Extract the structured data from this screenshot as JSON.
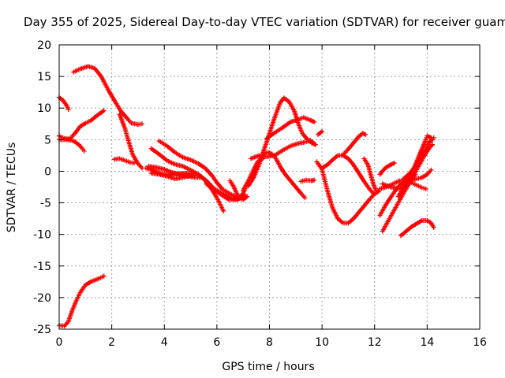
{
  "chart_data": {
    "type": "scatter",
    "title": "Day 355 of 2025, Sidereal Day-to-day VTEC variation (SDTVAR) for receiver guam",
    "xlabel": "GPS time / hours",
    "ylabel": "SDTVAR / TECUs",
    "xlim": [
      0,
      16
    ],
    "ylim": [
      -25,
      20
    ],
    "xticks": [
      "0",
      "2",
      "4",
      "6",
      "8",
      "10",
      "12",
      "14",
      "16"
    ],
    "yticks": [
      "-25",
      "-20",
      "-15",
      "-10",
      "-5",
      "0",
      "5",
      "10",
      "15",
      "20"
    ],
    "grid": true,
    "marker": "+",
    "color": "#ff0000",
    "series": [
      {
        "points": [
          [
            0.55,
            15.7
          ],
          [
            0.8,
            16.2
          ],
          [
            1.1,
            16.6
          ],
          [
            1.35,
            16.3
          ],
          [
            1.6,
            15.0
          ],
          [
            1.85,
            13.0
          ],
          [
            2.1,
            11.2
          ],
          [
            2.35,
            9.5
          ],
          [
            2.6,
            8.3
          ],
          [
            2.75,
            7.6
          ],
          [
            3.0,
            7.4
          ],
          [
            3.15,
            7.5
          ]
        ]
      },
      {
        "points": [
          [
            2.3,
            9.0
          ],
          [
            2.5,
            6.8
          ],
          [
            2.65,
            4.6
          ],
          [
            2.8,
            2.6
          ],
          [
            3.0,
            1.2
          ],
          [
            3.15,
            0.5
          ]
        ]
      },
      {
        "points": [
          [
            2.1,
            1.9
          ],
          [
            2.3,
            2.0
          ],
          [
            2.5,
            1.7
          ],
          [
            2.7,
            1.4
          ],
          [
            2.85,
            1.3
          ]
        ]
      },
      {
        "points": [
          [
            0.0,
            11.7
          ],
          [
            0.15,
            11.2
          ],
          [
            0.3,
            10.3
          ],
          [
            0.35,
            9.8
          ]
        ]
      },
      {
        "points": [
          [
            0.0,
            5.6
          ],
          [
            0.2,
            5.2
          ],
          [
            0.4,
            5.1
          ],
          [
            0.6,
            6.0
          ],
          [
            0.8,
            7.1
          ],
          [
            1.0,
            7.6
          ],
          [
            1.2,
            8.0
          ],
          [
            1.4,
            8.7
          ],
          [
            1.6,
            9.3
          ],
          [
            1.7,
            9.6
          ]
        ]
      },
      {
        "points": [
          [
            0.0,
            5.0
          ],
          [
            0.3,
            5.0
          ],
          [
            0.55,
            4.8
          ],
          [
            0.75,
            4.2
          ],
          [
            0.9,
            3.5
          ],
          [
            0.95,
            3.2
          ]
        ]
      },
      {
        "points": [
          [
            0.0,
            -24.4
          ],
          [
            0.2,
            -24.5
          ],
          [
            0.35,
            -23.8
          ],
          [
            0.5,
            -22.0
          ],
          [
            0.65,
            -20.5
          ],
          [
            0.8,
            -19.2
          ],
          [
            1.0,
            -18.0
          ],
          [
            1.2,
            -17.5
          ],
          [
            1.5,
            -17.0
          ],
          [
            1.7,
            -16.6
          ]
        ]
      },
      {
        "points": [
          [
            3.5,
            3.6
          ],
          [
            3.8,
            2.7
          ],
          [
            4.1,
            1.7
          ],
          [
            4.4,
            1.1
          ],
          [
            4.7,
            0.8
          ],
          [
            5.0,
            0.2
          ],
          [
            5.3,
            -0.5
          ],
          [
            5.5,
            -1.2
          ],
          [
            5.7,
            -2.2
          ],
          [
            5.9,
            -3.5
          ],
          [
            6.1,
            -5.0
          ],
          [
            6.25,
            -6.3
          ]
        ]
      },
      {
        "points": [
          [
            3.4,
            0.8
          ],
          [
            3.7,
            0.6
          ],
          [
            4.0,
            0.3
          ],
          [
            4.3,
            -0.2
          ],
          [
            4.6,
            -0.5
          ],
          [
            4.9,
            -0.8
          ],
          [
            5.2,
            -1.0
          ],
          [
            5.4,
            -1.0
          ]
        ]
      },
      {
        "points": [
          [
            3.5,
            -0.3
          ],
          [
            3.8,
            -0.5
          ],
          [
            4.1,
            -0.8
          ],
          [
            4.4,
            -1.2
          ],
          [
            4.7,
            -1.0
          ],
          [
            5.0,
            -0.7
          ],
          [
            5.2,
            -0.5
          ]
        ]
      },
      {
        "points": [
          [
            3.3,
            0.5
          ],
          [
            3.6,
            0.1
          ],
          [
            3.9,
            -0.4
          ],
          [
            4.2,
            -0.6
          ],
          [
            4.5,
            -0.4
          ],
          [
            4.8,
            -0.3
          ],
          [
            5.1,
            -0.4
          ]
        ]
      },
      {
        "points": [
          [
            3.8,
            4.8
          ],
          [
            4.1,
            4.0
          ],
          [
            4.4,
            3.0
          ],
          [
            4.7,
            2.2
          ],
          [
            5.0,
            1.8
          ],
          [
            5.3,
            1.2
          ],
          [
            5.55,
            0.5
          ],
          [
            5.8,
            -0.6
          ],
          [
            6.0,
            -1.8
          ],
          [
            6.2,
            -2.8
          ],
          [
            6.5,
            -3.6
          ],
          [
            6.8,
            -4.2
          ],
          [
            7.0,
            -4.5
          ],
          [
            7.15,
            -4.0
          ]
        ]
      },
      {
        "points": [
          [
            5.3,
            -0.5
          ],
          [
            5.6,
            -1.5
          ],
          [
            5.9,
            -2.8
          ],
          [
            6.2,
            -3.5
          ],
          [
            6.5,
            -4.2
          ],
          [
            6.8,
            -4.5
          ],
          [
            7.0,
            -3.5
          ],
          [
            7.2,
            -1.5
          ],
          [
            7.4,
            0.3
          ],
          [
            7.55,
            1.5
          ],
          [
            7.75,
            2.0
          ]
        ]
      },
      {
        "points": [
          [
            5.6,
            -2.0
          ],
          [
            5.9,
            -3.0
          ],
          [
            6.2,
            -3.8
          ],
          [
            6.45,
            -4.5
          ],
          [
            6.7,
            -4.5
          ],
          [
            6.9,
            -4.2
          ],
          [
            7.05,
            -3.7
          ]
        ]
      },
      {
        "points": [
          [
            6.5,
            -1.5
          ],
          [
            6.65,
            -2.5
          ],
          [
            6.75,
            -3.5
          ],
          [
            6.85,
            -4.0
          ]
        ]
      },
      {
        "points": [
          [
            7.0,
            -3.0
          ],
          [
            7.2,
            -1.5
          ],
          [
            7.35,
            -0.5
          ],
          [
            7.55,
            1.0
          ],
          [
            7.65,
            2.0
          ]
        ]
      },
      {
        "points": [
          [
            7.8,
            2.8
          ],
          [
            7.95,
            3.0
          ],
          [
            8.1,
            2.7
          ],
          [
            8.25,
            2.0
          ],
          [
            8.4,
            0.8
          ],
          [
            8.6,
            -0.5
          ],
          [
            8.8,
            -1.5
          ],
          [
            9.0,
            -2.5
          ],
          [
            9.2,
            -3.5
          ],
          [
            9.35,
            -4.2
          ]
        ]
      },
      {
        "points": [
          [
            7.2,
            -2.3
          ],
          [
            7.4,
            -1.0
          ],
          [
            7.6,
            1.0
          ],
          [
            7.8,
            3.5
          ],
          [
            8.0,
            6.0
          ],
          [
            8.2,
            8.5
          ],
          [
            8.4,
            10.8
          ],
          [
            8.55,
            11.6
          ],
          [
            8.75,
            11.0
          ],
          [
            8.95,
            9.5
          ],
          [
            9.1,
            7.5
          ],
          [
            9.25,
            6.0
          ],
          [
            9.45,
            5.0
          ],
          [
            9.6,
            4.5
          ],
          [
            9.75,
            4.2
          ]
        ]
      },
      {
        "points": [
          [
            7.9,
            5.2
          ],
          [
            8.2,
            6.1
          ],
          [
            8.5,
            6.9
          ],
          [
            8.8,
            7.8
          ],
          [
            9.1,
            8.2
          ],
          [
            9.3,
            8.5
          ],
          [
            9.55,
            8.1
          ],
          [
            9.7,
            7.8
          ]
        ]
      },
      {
        "points": [
          [
            7.3,
            2.0
          ],
          [
            7.6,
            2.5
          ],
          [
            7.9,
            2.3
          ],
          [
            8.2,
            2.5
          ],
          [
            8.5,
            3.3
          ],
          [
            8.8,
            4.0
          ],
          [
            9.1,
            4.4
          ],
          [
            9.35,
            4.6
          ],
          [
            9.55,
            4.9
          ],
          [
            9.7,
            4.4
          ]
        ]
      },
      {
        "points": [
          [
            9.2,
            -1.6
          ],
          [
            9.4,
            -1.4
          ],
          [
            9.6,
            -1.5
          ],
          [
            9.7,
            -1.4
          ]
        ]
      },
      {
        "points": [
          [
            9.85,
            5.8
          ],
          [
            10.0,
            6.3
          ]
        ]
      },
      {
        "points": [
          [
            9.8,
            1.5
          ],
          [
            10.0,
            0.3
          ],
          [
            10.2,
            -3.0
          ],
          [
            10.4,
            -5.8
          ],
          [
            10.6,
            -7.5
          ],
          [
            10.8,
            -8.2
          ],
          [
            11.0,
            -8.2
          ],
          [
            11.2,
            -7.5
          ],
          [
            11.4,
            -6.5
          ],
          [
            11.6,
            -5.5
          ],
          [
            11.8,
            -4.5
          ],
          [
            12.0,
            -3.6
          ],
          [
            12.15,
            -3.2
          ]
        ]
      },
      {
        "points": [
          [
            10.0,
            0.5
          ],
          [
            10.2,
            1.0
          ],
          [
            10.4,
            1.8
          ],
          [
            10.6,
            2.5
          ],
          [
            10.8,
            2.5
          ],
          [
            11.0,
            2.0
          ],
          [
            11.2,
            1.0
          ],
          [
            11.4,
            -0.3
          ],
          [
            11.6,
            -1.6
          ],
          [
            11.8,
            -2.8
          ],
          [
            11.95,
            -3.5
          ]
        ]
      },
      {
        "points": [
          [
            10.8,
            2.6
          ],
          [
            11.0,
            3.5
          ],
          [
            11.2,
            4.5
          ],
          [
            11.4,
            5.5
          ],
          [
            11.55,
            6.0
          ],
          [
            11.65,
            5.8
          ]
        ]
      },
      {
        "points": [
          [
            11.6,
            2.0
          ],
          [
            11.75,
            1.0
          ],
          [
            11.85,
            -0.5
          ],
          [
            11.95,
            -2.0
          ],
          [
            12.05,
            -3.0
          ]
        ]
      },
      {
        "points": [
          [
            12.2,
            -0.5
          ],
          [
            12.4,
            0.5
          ],
          [
            12.6,
            1.0
          ],
          [
            12.75,
            1.3
          ]
        ]
      },
      {
        "points": [
          [
            12.2,
            -7.0
          ],
          [
            12.4,
            -5.5
          ],
          [
            12.6,
            -4.2
          ],
          [
            12.8,
            -3.0
          ],
          [
            13.0,
            -2.0
          ],
          [
            13.2,
            -1.5
          ],
          [
            13.4,
            -1.5
          ],
          [
            13.6,
            -1.2
          ],
          [
            13.8,
            -1.0
          ],
          [
            14.0,
            -0.5
          ],
          [
            14.15,
            0.2
          ]
        ]
      },
      {
        "points": [
          [
            12.3,
            -9.5
          ],
          [
            12.5,
            -8.0
          ],
          [
            12.7,
            -6.5
          ],
          [
            12.9,
            -5.0
          ],
          [
            13.1,
            -3.5
          ],
          [
            13.3,
            -2.0
          ],
          [
            13.5,
            -0.5
          ],
          [
            13.7,
            1.0
          ],
          [
            13.9,
            2.5
          ],
          [
            14.1,
            3.8
          ],
          [
            14.2,
            4.2
          ]
        ]
      },
      {
        "points": [
          [
            12.2,
            -2.8
          ],
          [
            12.45,
            -2.5
          ],
          [
            12.7,
            -2.0
          ],
          [
            12.95,
            -1.5
          ],
          [
            13.2,
            -1.5
          ],
          [
            13.4,
            -1.8
          ],
          [
            13.6,
            -2.2
          ],
          [
            13.8,
            -2.6
          ],
          [
            13.95,
            -2.8
          ]
        ]
      },
      {
        "points": [
          [
            12.3,
            -2.0
          ],
          [
            12.6,
            -2.5
          ],
          [
            12.9,
            -2.7
          ],
          [
            13.2,
            -2.3
          ],
          [
            13.4,
            -1.5
          ],
          [
            13.55,
            -0.5
          ]
        ]
      },
      {
        "points": [
          [
            13.0,
            -3.5
          ],
          [
            13.2,
            -2.0
          ],
          [
            13.4,
            -0.5
          ],
          [
            13.55,
            1.0
          ],
          [
            13.7,
            2.5
          ],
          [
            13.85,
            4.0
          ],
          [
            13.95,
            5.0
          ],
          [
            14.0,
            5.6
          ],
          [
            14.15,
            5.3
          ]
        ]
      },
      {
        "points": [
          [
            12.9,
            -4.0
          ],
          [
            13.1,
            -2.5
          ],
          [
            13.3,
            -1.0
          ],
          [
            13.5,
            0.5
          ],
          [
            13.65,
            2.0
          ],
          [
            13.8,
            3.5
          ],
          [
            13.9,
            4.5
          ]
        ]
      },
      {
        "points": [
          [
            13.0,
            -10.2
          ],
          [
            13.2,
            -9.5
          ],
          [
            13.4,
            -8.8
          ],
          [
            13.6,
            -8.3
          ],
          [
            13.8,
            -7.8
          ],
          [
            14.0,
            -7.8
          ],
          [
            14.15,
            -8.2
          ],
          [
            14.25,
            -8.9
          ]
        ]
      },
      {
        "points": [
          [
            13.1,
            -1.2
          ],
          [
            13.3,
            -0.5
          ],
          [
            13.5,
            0.5
          ],
          [
            13.7,
            1.8
          ],
          [
            13.9,
            3.2
          ],
          [
            14.05,
            4.5
          ],
          [
            14.2,
            5.0
          ],
          [
            14.25,
            5.3
          ]
        ]
      }
    ]
  }
}
